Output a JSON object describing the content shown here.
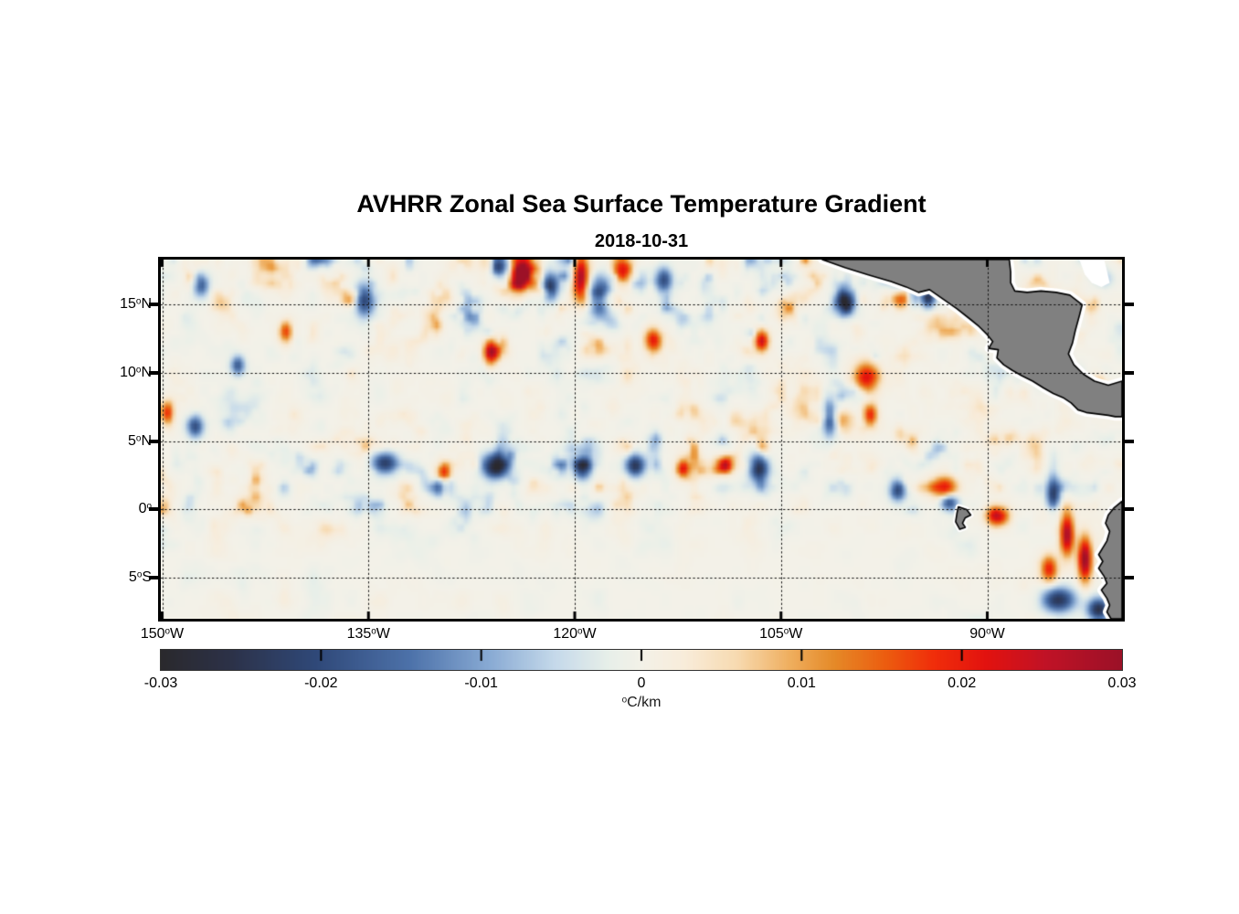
{
  "figure": {
    "title": "AVHRR Zonal Sea Surface Temperature Gradient",
    "subtitle": "2018-10-31",
    "background": "#ffffff"
  },
  "chart_data": {
    "type": "heatmap",
    "title": "AVHRR Zonal Sea Surface Temperature Gradient",
    "subtitle": "2018-10-31",
    "xlabel": "",
    "ylabel": "",
    "units": "°C/km",
    "value_range": [
      -0.03,
      0.03
    ],
    "lon_range": [
      -150.1,
      -80.2
    ],
    "lat_range": [
      -8.0,
      18.3
    ],
    "grid_style": "dotted",
    "x_ticks": [
      {
        "value": -150,
        "label": "150°W"
      },
      {
        "value": -135,
        "label": "135°W"
      },
      {
        "value": -120,
        "label": "120°W"
      },
      {
        "value": -105,
        "label": "105°W"
      },
      {
        "value": -90,
        "label": "90°W"
      }
    ],
    "y_ticks": [
      {
        "value": 15,
        "label": "15°N"
      },
      {
        "value": 10,
        "label": "10°N"
      },
      {
        "value": 5,
        "label": "5°N"
      },
      {
        "value": 0,
        "label": "0°"
      },
      {
        "value": -5,
        "label": "5°S"
      }
    ],
    "colorbar": {
      "unit": "°C/km",
      "ticks": [
        {
          "value": -0.03,
          "label": "-0.03"
        },
        {
          "value": -0.02,
          "label": "-0.02"
        },
        {
          "value": -0.01,
          "label": "-0.01"
        },
        {
          "value": 0,
          "label": "0"
        },
        {
          "value": 0.01,
          "label": "0.01"
        },
        {
          "value": 0.02,
          "label": "0.02"
        },
        {
          "value": 0.03,
          "label": "0.03"
        }
      ]
    },
    "colormap": [
      [
        0.0,
        "#2a292d"
      ],
      [
        0.07,
        "#2c3147"
      ],
      [
        0.16,
        "#2f4878"
      ],
      [
        0.26,
        "#4d72aa"
      ],
      [
        0.34,
        "#87a9d3"
      ],
      [
        0.41,
        "#c5d9ea"
      ],
      [
        0.465,
        "#e7efe9"
      ],
      [
        0.5,
        "#f3f1e8"
      ],
      [
        0.545,
        "#f8ecda"
      ],
      [
        0.6,
        "#f7dab0"
      ],
      [
        0.655,
        "#efae5e"
      ],
      [
        0.7,
        "#e58a28"
      ],
      [
        0.755,
        "#ec5c0f"
      ],
      [
        0.805,
        "#f02d0a"
      ],
      [
        0.86,
        "#e2120f"
      ],
      [
        0.92,
        "#c11226"
      ],
      [
        1.0,
        "#9b1127"
      ]
    ],
    "land_color": "#808080",
    "coast_color": "#000000",
    "nodata_color": "#ffffff",
    "texture": {
      "seed": 20181031,
      "octaves": [
        {
          "sx": 34,
          "sy": 25,
          "amp": 0.0078
        },
        {
          "sx": 15,
          "sy": 21,
          "amp": 0.0052
        },
        {
          "sx": 8,
          "sy": 9,
          "amp": 0.0026
        }
      ],
      "sharpen_scale": 0.0145,
      "clamp": 1.75,
      "base_scale": 0.0148,
      "south_quiet": {
        "lat_edge": -1.5,
        "width": 2.5,
        "floor": 0.55
      },
      "zones": [
        {
          "lat": 16.4,
          "lon": -121,
          "sx": 18,
          "sy": 2.6,
          "gain": 0.45
        },
        {
          "lat": 12.5,
          "lon": -145.5,
          "sx": 7,
          "sy": 3.5,
          "gain": -0.35
        },
        {
          "lat": -4.0,
          "lon": -100,
          "sx": 9,
          "sy": 3.0,
          "gain": -0.4
        },
        {
          "lat": -5.5,
          "lon": -125,
          "sx": 12,
          "sy": 3.0,
          "gain": -0.3
        },
        {
          "lat": 3.0,
          "lon": -118,
          "sx": 22,
          "sy": 2.0,
          "gain": 0.25
        },
        {
          "lat": 8.5,
          "lon": -128,
          "sx": 10,
          "sy": 3.0,
          "gain": -0.25
        }
      ]
    },
    "features_key": [
      "lon",
      "lat",
      "rx_deg",
      "ry_deg",
      "amp_C_per_km"
    ],
    "features": [
      [
        -123.9,
        17.3,
        0.7,
        1.2,
        0.031
      ],
      [
        -119.6,
        17.0,
        0.6,
        1.6,
        0.03
      ],
      [
        -121.8,
        16.3,
        0.6,
        1.0,
        -0.024
      ],
      [
        -118.2,
        15.6,
        0.8,
        1.4,
        -0.026
      ],
      [
        -125.6,
        17.8,
        0.8,
        0.8,
        -0.022
      ],
      [
        -116.5,
        17.5,
        0.7,
        1.0,
        0.024
      ],
      [
        -113.5,
        16.8,
        0.6,
        0.9,
        -0.02
      ],
      [
        -126.1,
        11.5,
        0.5,
        0.9,
        0.026
      ],
      [
        -135.3,
        15.3,
        0.7,
        1.2,
        -0.021
      ],
      [
        -147.2,
        16.5,
        0.6,
        0.9,
        -0.019
      ],
      [
        -114.3,
        12.4,
        0.6,
        0.8,
        0.021
      ],
      [
        -106.4,
        12.3,
        0.5,
        0.8,
        0.023
      ],
      [
        -98.8,
        9.6,
        0.9,
        1.1,
        0.022
      ],
      [
        -101.5,
        6.6,
        0.5,
        1.3,
        -0.02
      ],
      [
        -98.5,
        6.9,
        0.5,
        0.9,
        0.02
      ],
      [
        -133.8,
        3.3,
        0.9,
        0.8,
        -0.023
      ],
      [
        -125.8,
        3.1,
        1.0,
        0.9,
        -0.026
      ],
      [
        -119.4,
        2.9,
        0.6,
        0.8,
        -0.021
      ],
      [
        -115.6,
        3.1,
        0.7,
        0.8,
        -0.025
      ],
      [
        -106.6,
        2.9,
        0.7,
        1.0,
        -0.026
      ],
      [
        -112.1,
        2.9,
        0.5,
        0.7,
        0.021
      ],
      [
        -109.0,
        3.2,
        0.5,
        0.6,
        0.019
      ],
      [
        -129.5,
        2.6,
        0.5,
        0.7,
        0.018
      ],
      [
        -96.5,
        1.3,
        0.6,
        0.8,
        -0.021
      ],
      [
        -93.1,
        1.5,
        0.9,
        0.8,
        0.021
      ],
      [
        -92.8,
        0.4,
        0.6,
        0.6,
        -0.02
      ],
      [
        -89.3,
        -0.6,
        0.8,
        0.7,
        0.028
      ],
      [
        -85.2,
        1.0,
        0.5,
        1.2,
        -0.023
      ],
      [
        -84.2,
        -2.0,
        0.5,
        1.5,
        0.029
      ],
      [
        -82.9,
        -3.8,
        0.5,
        1.6,
        0.031
      ],
      [
        -85.5,
        -4.5,
        0.6,
        1.0,
        0.02
      ],
      [
        -84.8,
        -6.8,
        1.2,
        0.9,
        -0.024
      ],
      [
        -81.9,
        -7.5,
        0.8,
        0.8,
        -0.026
      ],
      [
        -100.3,
        15.1,
        0.7,
        0.8,
        -0.023
      ],
      [
        -96.2,
        15.4,
        0.6,
        0.7,
        0.026
      ],
      [
        -94.3,
        15.5,
        0.5,
        0.7,
        -0.026
      ],
      [
        -88.6,
        13.2,
        0.5,
        1.1,
        -0.025
      ],
      [
        -86.9,
        11.2,
        0.5,
        0.9,
        0.022
      ],
      [
        -81.8,
        8.7,
        0.5,
        0.8,
        0.026
      ],
      [
        -84.0,
        9.2,
        0.5,
        0.7,
        -0.022
      ],
      [
        -149.6,
        7.0,
        0.5,
        0.9,
        0.019
      ],
      [
        -147.6,
        6.0,
        0.6,
        0.8,
        -0.02
      ],
      [
        -141.0,
        13.0,
        0.5,
        0.8,
        0.018
      ],
      [
        -144.5,
        10.5,
        0.5,
        0.7,
        -0.018
      ]
    ],
    "land": [
      {
        "name": "caribbean-nodata-west",
        "type": "nodata",
        "points": [
          [
            -89.2,
            18.3
          ],
          [
            -88.9,
            17.4
          ],
          [
            -88.5,
            16.6
          ],
          [
            -88.0,
            16.9
          ],
          [
            -88.2,
            17.8
          ],
          [
            -88.4,
            18.3
          ]
        ]
      },
      {
        "name": "caribbean-nodata-east",
        "type": "nodata",
        "points": [
          [
            -83.3,
            18.3
          ],
          [
            -82.9,
            17.2
          ],
          [
            -82.4,
            16.6
          ],
          [
            -81.7,
            16.3
          ],
          [
            -81.1,
            16.6
          ],
          [
            -81.3,
            17.5
          ],
          [
            -81.5,
            18.3
          ]
        ]
      },
      {
        "name": "central-america",
        "type": "land",
        "points": [
          [
            -102.0,
            18.3
          ],
          [
            -100.3,
            17.7
          ],
          [
            -98.7,
            17.2
          ],
          [
            -97.0,
            16.7
          ],
          [
            -95.9,
            16.3
          ],
          [
            -95.0,
            15.9
          ],
          [
            -94.2,
            16.1
          ],
          [
            -93.2,
            15.4
          ],
          [
            -92.2,
            14.7
          ],
          [
            -91.2,
            13.9
          ],
          [
            -90.6,
            13.4
          ],
          [
            -90.0,
            12.8
          ],
          [
            -89.6,
            12.3
          ],
          [
            -89.9,
            11.8
          ],
          [
            -89.2,
            11.7
          ],
          [
            -89.3,
            11.1
          ],
          [
            -88.8,
            10.6
          ],
          [
            -88.2,
            10.2
          ],
          [
            -87.5,
            9.8
          ],
          [
            -86.7,
            9.4
          ],
          [
            -85.9,
            8.9
          ],
          [
            -85.2,
            8.5
          ],
          [
            -84.5,
            8.2
          ],
          [
            -83.9,
            7.8
          ],
          [
            -83.4,
            7.3
          ],
          [
            -82.8,
            7.1
          ],
          [
            -82.0,
            7.0
          ],
          [
            -81.2,
            6.9
          ],
          [
            -80.7,
            6.8
          ],
          [
            -80.2,
            6.8
          ],
          [
            -80.2,
            9.4
          ],
          [
            -81.2,
            9.1
          ],
          [
            -82.2,
            9.4
          ],
          [
            -83.0,
            9.9
          ],
          [
            -83.7,
            10.6
          ],
          [
            -84.1,
            11.4
          ],
          [
            -83.8,
            12.2
          ],
          [
            -83.6,
            13.1
          ],
          [
            -83.3,
            14.2
          ],
          [
            -83.1,
            15.0
          ],
          [
            -84.0,
            15.7
          ],
          [
            -85.0,
            15.9
          ],
          [
            -86.1,
            16.0
          ],
          [
            -87.1,
            15.9
          ],
          [
            -88.0,
            16.0
          ],
          [
            -88.3,
            16.6
          ],
          [
            -88.3,
            17.4
          ],
          [
            -88.4,
            18.3
          ]
        ]
      },
      {
        "name": "south-america",
        "type": "land",
        "points": [
          [
            -80.2,
            0.6
          ],
          [
            -80.8,
            0.1
          ],
          [
            -81.2,
            -0.4
          ],
          [
            -81.4,
            -1.0
          ],
          [
            -81.1,
            -1.6
          ],
          [
            -81.3,
            -2.3
          ],
          [
            -81.6,
            -2.8
          ],
          [
            -81.9,
            -3.3
          ],
          [
            -81.6,
            -3.8
          ],
          [
            -81.9,
            -4.3
          ],
          [
            -81.5,
            -4.9
          ],
          [
            -81.3,
            -5.4
          ],
          [
            -81.7,
            -5.9
          ],
          [
            -81.3,
            -6.5
          ],
          [
            -81.1,
            -7.0
          ],
          [
            -81.3,
            -7.5
          ],
          [
            -81.0,
            -8.0
          ],
          [
            -80.2,
            -8.0
          ]
        ]
      },
      {
        "name": "galapagos-islands",
        "type": "land",
        "points": [
          [
            -92.1,
            0.2
          ],
          [
            -91.5,
            0.0
          ],
          [
            -91.2,
            -0.4
          ],
          [
            -91.6,
            -0.6
          ],
          [
            -91.8,
            -1.0
          ],
          [
            -91.6,
            -1.3
          ],
          [
            -92.0,
            -1.45
          ],
          [
            -92.3,
            -0.9
          ],
          [
            -92.2,
            -0.25
          ]
        ]
      }
    ]
  }
}
